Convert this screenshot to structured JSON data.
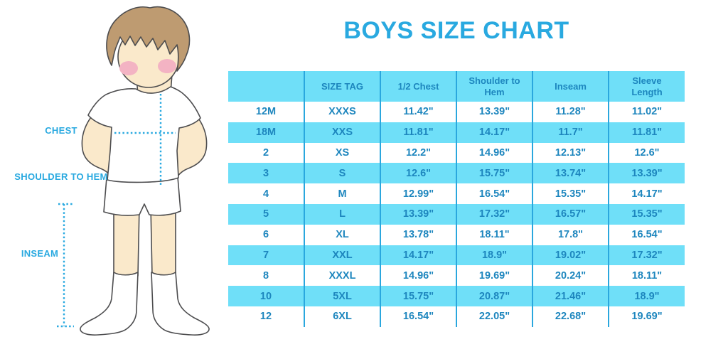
{
  "title": "BOYS SIZE CHART",
  "colors": {
    "accent": "#29a9e0",
    "cyan": "#6fdff8",
    "divider": "#2aa7de",
    "text_blue": "#1d86be"
  },
  "figure": {
    "labels": {
      "chest": "CHEST",
      "shoulder_to_hem": "SHOULDER TO HEM",
      "inseam": "INSEAM"
    }
  },
  "chart_data": {
    "type": "table",
    "title": "BOYS SIZE CHART",
    "columns": [
      "",
      "SIZE TAG",
      "1/2 Chest",
      "Shoulder to Hem",
      "Inseam",
      "Sleeve Length"
    ],
    "rows": [
      [
        "12M",
        "XXXS",
        "11.42\"",
        "13.39\"",
        "11.28\"",
        "11.02\""
      ],
      [
        "18M",
        "XXS",
        "11.81\"",
        "14.17\"",
        "11.7\"",
        "11.81\""
      ],
      [
        "2",
        "XS",
        "12.2\"",
        "14.96\"",
        "12.13\"",
        "12.6\""
      ],
      [
        "3",
        "S",
        "12.6\"",
        "15.75\"",
        "13.74\"",
        "13.39\""
      ],
      [
        "4",
        "M",
        "12.99\"",
        "16.54\"",
        "15.35\"",
        "14.17\""
      ],
      [
        "5",
        "L",
        "13.39\"",
        "17.32\"",
        "16.57\"",
        "15.35\""
      ],
      [
        "6",
        "XL",
        "13.78\"",
        "18.11\"",
        "17.8\"",
        "16.54\""
      ],
      [
        "7",
        "XXL",
        "14.17\"",
        "18.9\"",
        "19.02\"",
        "17.32\""
      ],
      [
        "8",
        "XXXL",
        "14.96\"",
        "19.69\"",
        "20.24\"",
        "18.11\""
      ],
      [
        "10",
        "5XL",
        "15.75\"",
        "20.87\"",
        "21.46\"",
        "18.9\""
      ],
      [
        "12",
        "6XL",
        "16.54\"",
        "22.05\"",
        "22.68\"",
        "19.69\""
      ]
    ],
    "legend": "rows alternate white and light-cyan; dark blue column dividers; no outer border"
  }
}
